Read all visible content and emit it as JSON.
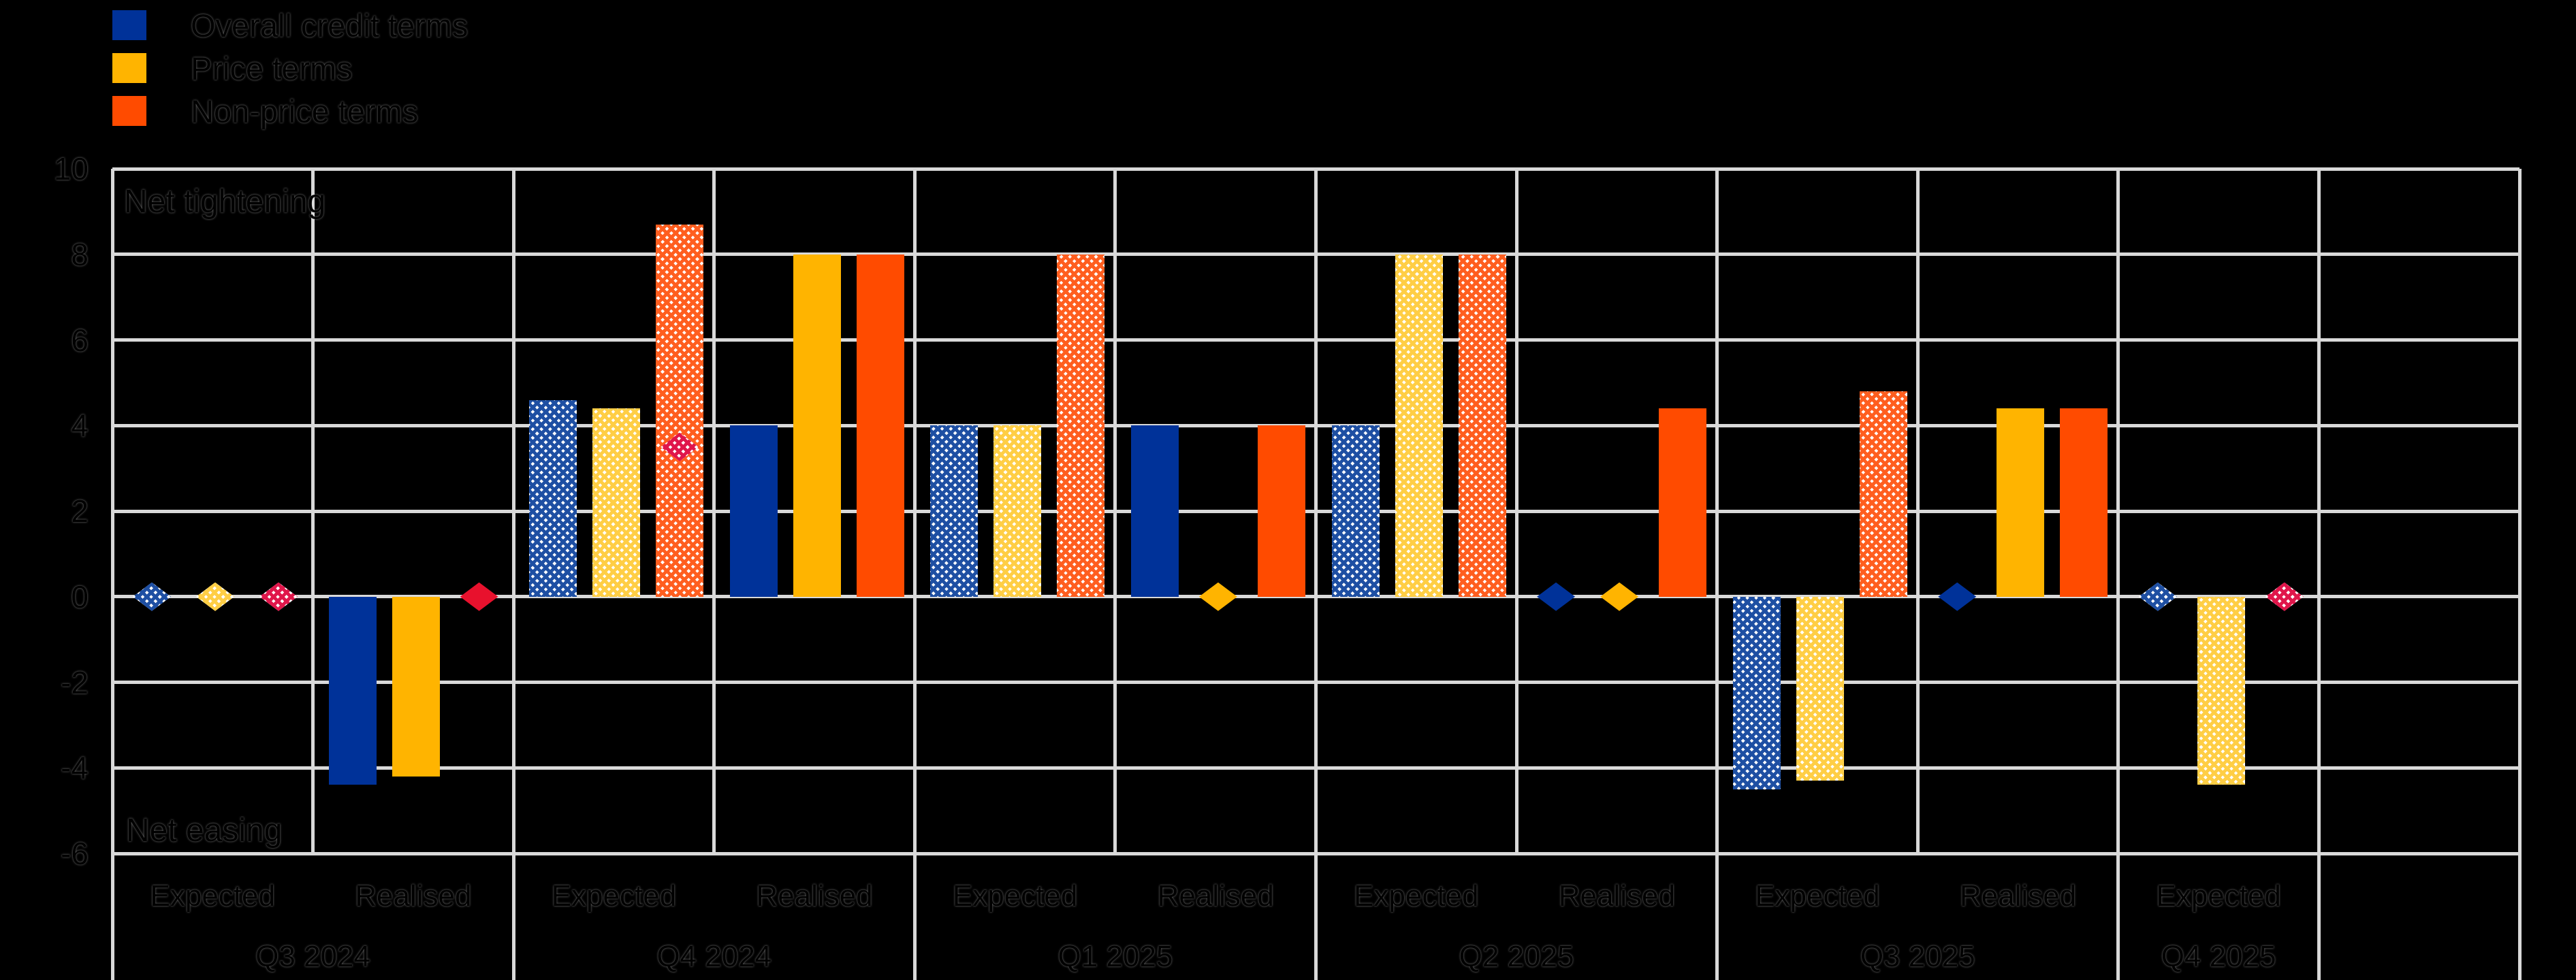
{
  "annotations": {
    "top_left": "Net tightening",
    "bottom_left": "Net easing"
  },
  "legend": {
    "items": [
      {
        "label": "Overall credit terms"
      },
      {
        "label": "Price terms"
      },
      {
        "label": "Non-price terms"
      }
    ]
  },
  "chart_data": {
    "type": "bar",
    "title": "",
    "ylabel": "",
    "xlabel": "",
    "grid": true,
    "legend_position": "top-left",
    "background": "#000000",
    "gridline_color": "#d9d9d9",
    "y_axis": {
      "min": -6,
      "max": 10,
      "tick_step": 2,
      "tick_labels": [
        "10",
        "8",
        "6",
        "4",
        "2",
        "0",
        "-2",
        "-4",
        "-6"
      ]
    },
    "in_plot_labels": {
      "top_left": "Net tightening",
      "bottom_left": "Net easing"
    },
    "series": [
      {
        "name": "Overall credit terms",
        "solid": "#003299",
        "hatch": "#1E4FA3",
        "diamond_solid": "#003299",
        "diamond_hatch": "#1E4FA3"
      },
      {
        "name": "Price terms",
        "solid": "#FFB400",
        "hatch": "#FFCE45",
        "diamond_solid": "#FFB400",
        "diamond_hatch": "#FFCE45"
      },
      {
        "name": "Non-price terms",
        "solid": "#FF4B00",
        "hatch": "#FF5E1F",
        "diamond_solid": "#E8112D",
        "diamond_hatch": "#E0164B"
      }
    ],
    "cluster_note": "bars and diamonds arrays are ordered [overall, price, non-price]; null = not drawn; style hatched = expected, solid = realised",
    "clusters": [
      {
        "quarter": "Q3 2024",
        "label": "Expected",
        "style": "hatched",
        "bars": [
          null,
          null,
          null
        ],
        "diamonds": [
          0,
          0,
          0
        ]
      },
      {
        "quarter": "Q3 2024",
        "label": "Realised",
        "style": "solid",
        "bars": [
          -4.4,
          -4.2,
          null
        ],
        "diamonds": [
          null,
          null,
          0
        ]
      },
      {
        "quarter": "Q4 2024",
        "label": "Expected",
        "style": "hatched",
        "bars": [
          4.6,
          4.4,
          8.7
        ],
        "diamonds": [
          null,
          null,
          3.5
        ]
      },
      {
        "quarter": "Q4 2024",
        "label": "Realised",
        "style": "solid",
        "bars": [
          4.0,
          8.0,
          8.0
        ],
        "diamonds": [
          null,
          null,
          null
        ]
      },
      {
        "quarter": "Q1 2025",
        "label": "Expected",
        "style": "hatched",
        "bars": [
          4.0,
          4.0,
          8.0
        ],
        "diamonds": [
          null,
          null,
          null
        ]
      },
      {
        "quarter": "Q1 2025",
        "label": "Realised",
        "style": "solid",
        "bars": [
          4.0,
          null,
          4.0
        ],
        "diamonds": [
          null,
          0,
          null
        ]
      },
      {
        "quarter": "Q2 2025",
        "label": "Expected",
        "style": "hatched",
        "bars": [
          4.0,
          8.0,
          8.0
        ],
        "diamonds": [
          null,
          null,
          null
        ]
      },
      {
        "quarter": "Q2 2025",
        "label": "Realised",
        "style": "solid",
        "bars": [
          null,
          null,
          4.4
        ],
        "diamonds": [
          0,
          0,
          null
        ]
      },
      {
        "quarter": "Q3 2025",
        "label": "Expected",
        "style": "hatched",
        "bars": [
          -4.5,
          -4.3,
          4.8
        ],
        "diamonds": [
          null,
          null,
          null
        ]
      },
      {
        "quarter": "Q3 2025",
        "label": "Realised",
        "style": "solid",
        "bars": [
          null,
          4.4,
          4.4
        ],
        "diamonds": [
          0,
          null,
          null
        ]
      },
      {
        "quarter": "Q4 2025",
        "label": "Expected",
        "style": "hatched",
        "bars": [
          null,
          -4.4,
          null
        ],
        "diamonds": [
          0,
          null,
          0
        ]
      }
    ],
    "quarters": [
      {
        "label": "Q3 2024",
        "clusters": 2
      },
      {
        "label": "Q4 2024",
        "clusters": 2
      },
      {
        "label": "Q1 2025",
        "clusters": 2
      },
      {
        "label": "Q2 2025",
        "clusters": 2
      },
      {
        "label": "Q3 2025",
        "clusters": 2
      },
      {
        "label": "Q4 2025",
        "clusters": 1
      }
    ]
  }
}
